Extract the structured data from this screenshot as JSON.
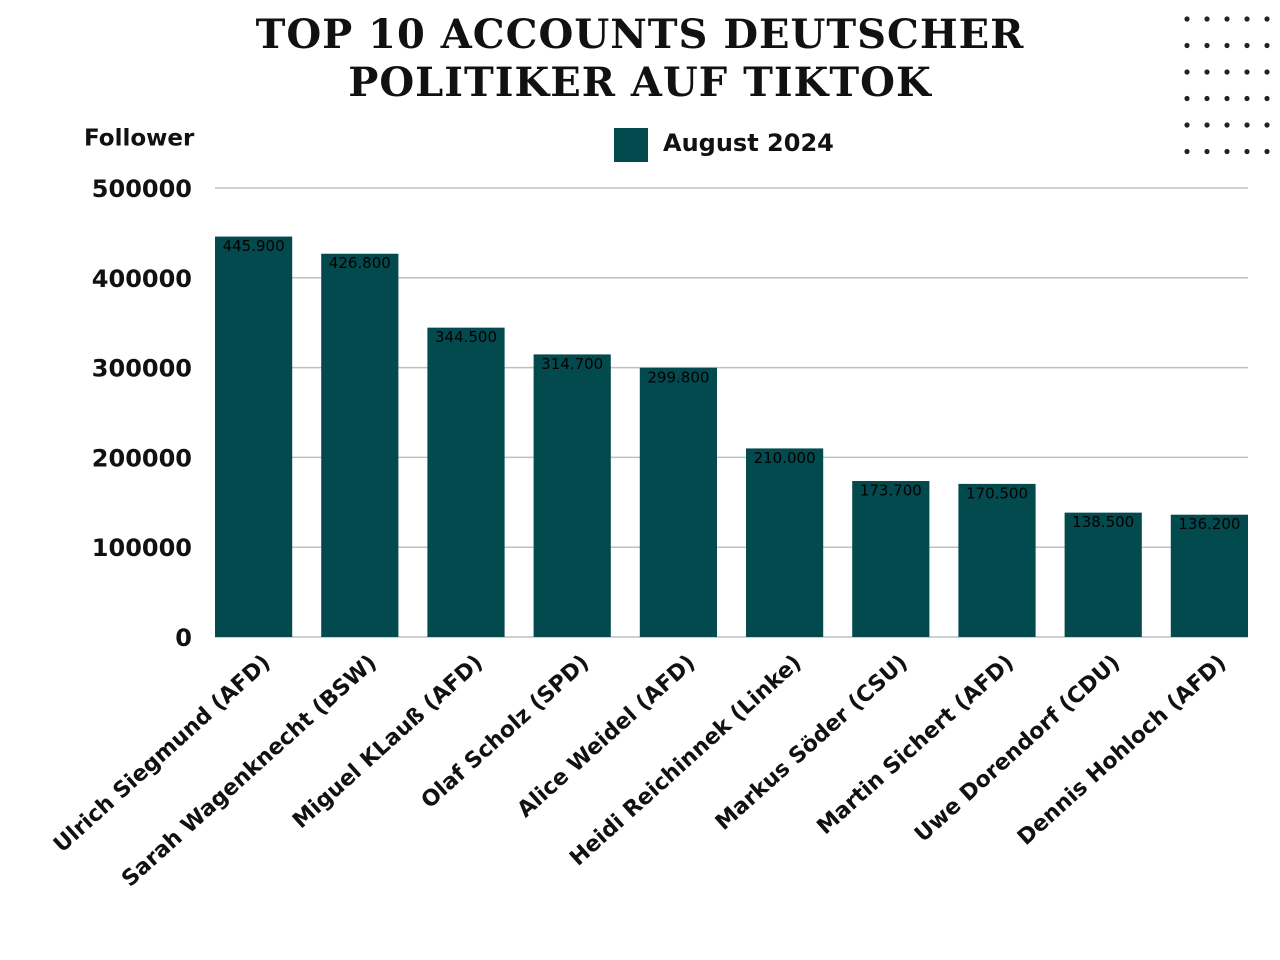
{
  "chart_data": {
    "type": "bar",
    "title_lines": [
      "TOP 10 ACCOUNTS DEUTSCHER",
      "POLITIKER AUF TIKTOK"
    ],
    "y_label": "Follower",
    "categories": [
      "Ulrich Siegmund (AFD)",
      "Sarah Wagenknecht (BSW)",
      "Miguel KLauß (AFD)",
      "Olaf Scholz (SPD)",
      "Alice Weidel (AFD)",
      "Heidi Reichinnek (Linke)",
      "Markus Söder (CSU)",
      "Martin Sichert (AFD)",
      "Uwe Dorendorf (CDU)",
      "Dennis Hohloch (AFD)"
    ],
    "series": [
      {
        "name": "August 2024",
        "color": "#034a4f",
        "values": [
          445900,
          426800,
          344500,
          314700,
          299800,
          210000,
          173700,
          170500,
          138500,
          136200
        ],
        "value_labels": [
          "445.900",
          "426.800",
          "344.500",
          "314.700",
          "299.800",
          "210.000",
          "173.700",
          "170.500",
          "138.500",
          "136.200"
        ]
      }
    ],
    "ylim": [
      0,
      500000
    ],
    "yticks": [
      0,
      100000,
      200000,
      300000,
      400000,
      500000
    ],
    "grid": true
  }
}
